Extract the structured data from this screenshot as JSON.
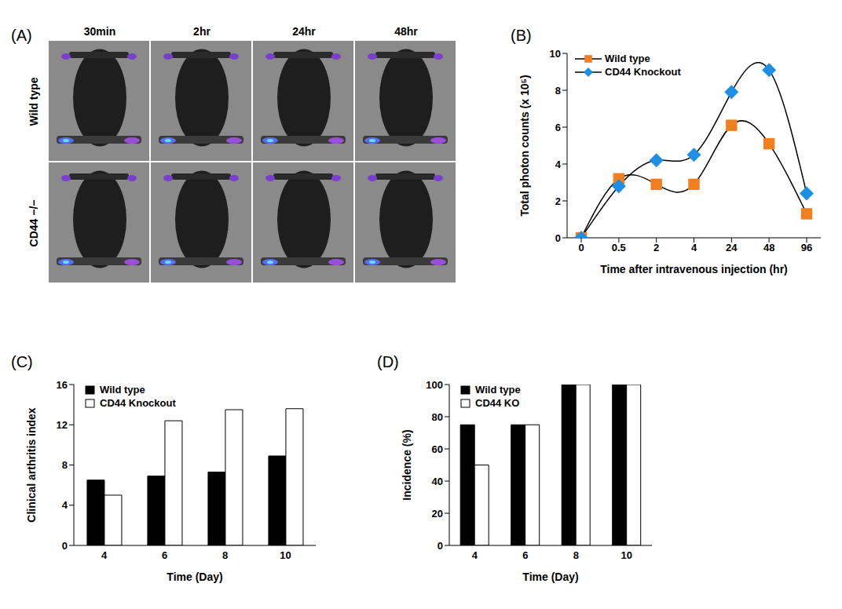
{
  "chart_data": [
    {
      "panel_label": "(A)",
      "type": "image_grid",
      "columns": [
        "30min",
        "2hr",
        "24hr",
        "48hr"
      ],
      "rows": [
        "Wild type",
        "CD44 −/−"
      ]
    },
    {
      "panel_label": "(B)",
      "type": "line",
      "x_label": "Time after intravenous injection (hr)",
      "y_label": "Total photon counts (x 10⁵)",
      "categories": [
        0,
        0.5,
        2,
        4,
        24,
        48,
        96
      ],
      "series": [
        {
          "name": "Wild type",
          "color": "#f07f21",
          "marker": "square",
          "values": [
            0,
            3.2,
            2.9,
            2.9,
            6.1,
            5.1,
            1.3
          ]
        },
        {
          "name": "CD44 Knockout",
          "color": "#1e8fe6",
          "marker": "diamond",
          "values": [
            0,
            2.8,
            4.2,
            4.5,
            7.9,
            9.1,
            2.4
          ]
        }
      ],
      "ylim": [
        0,
        10
      ],
      "yticks": [
        0,
        2,
        4,
        6,
        8,
        10
      ],
      "legend": "upper left"
    },
    {
      "panel_label": "(C)",
      "type": "bar",
      "x_label": "Time (Day)",
      "y_label": "Clinical arthritis index",
      "categories": [
        4,
        6,
        8,
        10
      ],
      "series": [
        {
          "name": "Wild type",
          "color": "#000000",
          "values": [
            6.5,
            6.9,
            7.3,
            8.9
          ]
        },
        {
          "name": "CD44 Knockout",
          "color": "#ffffff",
          "values": [
            5.0,
            12.4,
            13.5,
            13.6
          ]
        }
      ],
      "ylim": [
        0,
        16
      ],
      "yticks": [
        0,
        4,
        8,
        12,
        16
      ],
      "legend": "upper left"
    },
    {
      "panel_label": "(D)",
      "type": "bar",
      "x_label": "Time (Day)",
      "y_label": "Incidence (%)",
      "categories": [
        4,
        6,
        8,
        10
      ],
      "series": [
        {
          "name": "Wild type",
          "color": "#000000",
          "values": [
            75,
            75,
            100,
            100
          ]
        },
        {
          "name": "CD44 KO",
          "color": "#ffffff",
          "values": [
            50,
            75,
            100,
            100
          ]
        }
      ],
      "ylim": [
        0,
        100
      ],
      "yticks": [
        0,
        20,
        40,
        60,
        80,
        100
      ],
      "legend": "upper left"
    }
  ]
}
